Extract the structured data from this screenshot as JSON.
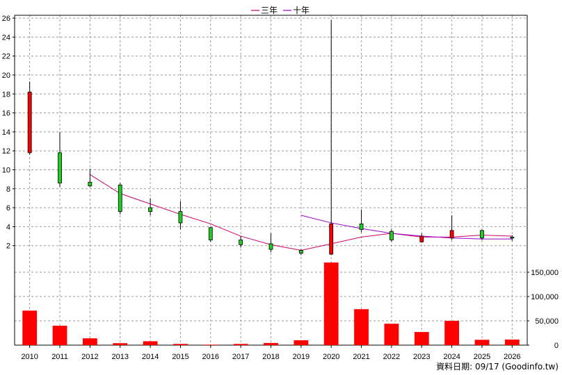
{
  "chart_data": {
    "type": "candlestick",
    "legend": [
      {
        "name": "三年",
        "color": "#cc0066"
      },
      {
        "name": "十年",
        "color": "#9900cc"
      }
    ],
    "legend_position": "top-center",
    "grid": true,
    "x": [
      "2010",
      "2011",
      "2012",
      "2013",
      "2014",
      "2015",
      "2016",
      "2017",
      "2018",
      "2019",
      "2020",
      "2021",
      "2022",
      "2023",
      "2024",
      "2025",
      "2026"
    ],
    "price_axis": {
      "ticks": [
        2,
        4,
        6,
        8,
        10,
        12,
        14,
        16,
        18,
        20,
        22,
        24,
        26
      ],
      "ylim": [
        0,
        26.3
      ]
    },
    "volume_axis": {
      "ticks": [
        0,
        50000,
        100000,
        150000
      ],
      "tick_labels": [
        "0",
        "50,000",
        "100,000",
        "150,000"
      ],
      "ylim": [
        0,
        170000
      ]
    },
    "candles": [
      {
        "x": "2010",
        "open": 11.8,
        "close": 18.2,
        "high": 19.3,
        "low": 11.6
      },
      {
        "x": "2011",
        "open": 11.8,
        "close": 8.6,
        "high": 14.0,
        "low": 8.2
      },
      {
        "x": "2012",
        "open": 8.7,
        "close": 8.3,
        "high": 10.1,
        "low": 8.2
      },
      {
        "x": "2013",
        "open": 8.4,
        "close": 5.6,
        "high": 8.6,
        "low": 5.3
      },
      {
        "x": "2014",
        "open": 6.0,
        "close": 5.6,
        "high": 7.0,
        "low": 5.2
      },
      {
        "x": "2015",
        "open": 5.6,
        "close": 4.4,
        "high": 6.7,
        "low": 3.7
      },
      {
        "x": "2016",
        "open": 3.9,
        "close": 2.6,
        "high": 4.0,
        "low": 2.4
      },
      {
        "x": "2017",
        "open": 2.6,
        "close": 2.1,
        "high": 3.0,
        "low": 1.8
      },
      {
        "x": "2018",
        "open": 2.2,
        "close": 1.6,
        "high": 3.3,
        "low": 1.3
      },
      {
        "x": "2019",
        "open": 1.5,
        "close": 1.2,
        "high": 1.6,
        "low": 1.0
      },
      {
        "x": "2020",
        "open": 1.1,
        "close": 4.3,
        "high": 25.8,
        "low": 1.0
      },
      {
        "x": "2021",
        "open": 4.3,
        "close": 3.7,
        "high": 5.8,
        "low": 3.4
      },
      {
        "x": "2022",
        "open": 3.5,
        "close": 2.6,
        "high": 3.7,
        "low": 2.4
      },
      {
        "x": "2023",
        "open": 2.4,
        "close": 3.0,
        "high": 3.3,
        "low": 2.3
      },
      {
        "x": "2024",
        "open": 2.8,
        "close": 3.6,
        "high": 5.2,
        "low": 2.6
      },
      {
        "x": "2025",
        "open": 3.6,
        "close": 2.8,
        "high": 3.7,
        "low": 2.6
      },
      {
        "x": "2026",
        "open": 2.9,
        "close": 2.8,
        "high": 3.1,
        "low": 2.5
      }
    ],
    "volume": [
      71000,
      40000,
      14000,
      4000,
      8000,
      2500,
      1000,
      2500,
      4500,
      10000,
      170000,
      74000,
      44000,
      27000,
      50000,
      11000,
      11500
    ],
    "series": [
      {
        "name": "三年",
        "x": [
          "2012",
          "2013",
          "2014",
          "2015",
          "2016",
          "2017",
          "2018",
          "2019",
          "2020",
          "2021",
          "2022",
          "2023",
          "2024",
          "2025",
          "2026"
        ],
        "values": [
          9.5,
          7.5,
          6.4,
          5.3,
          4.3,
          3.0,
          2.1,
          1.5,
          2.2,
          2.9,
          3.3,
          2.9,
          2.9,
          3.1,
          3.0
        ]
      },
      {
        "name": "十年",
        "x": [
          "2019",
          "2020",
          "2021",
          "2022",
          "2023",
          "2024",
          "2025",
          "2026"
        ],
        "values": [
          5.2,
          4.4,
          3.8,
          3.3,
          3.0,
          2.8,
          2.7,
          2.7
        ]
      }
    ],
    "source_label": "資料日期: 09/17  (Goodinfo.tw)"
  }
}
